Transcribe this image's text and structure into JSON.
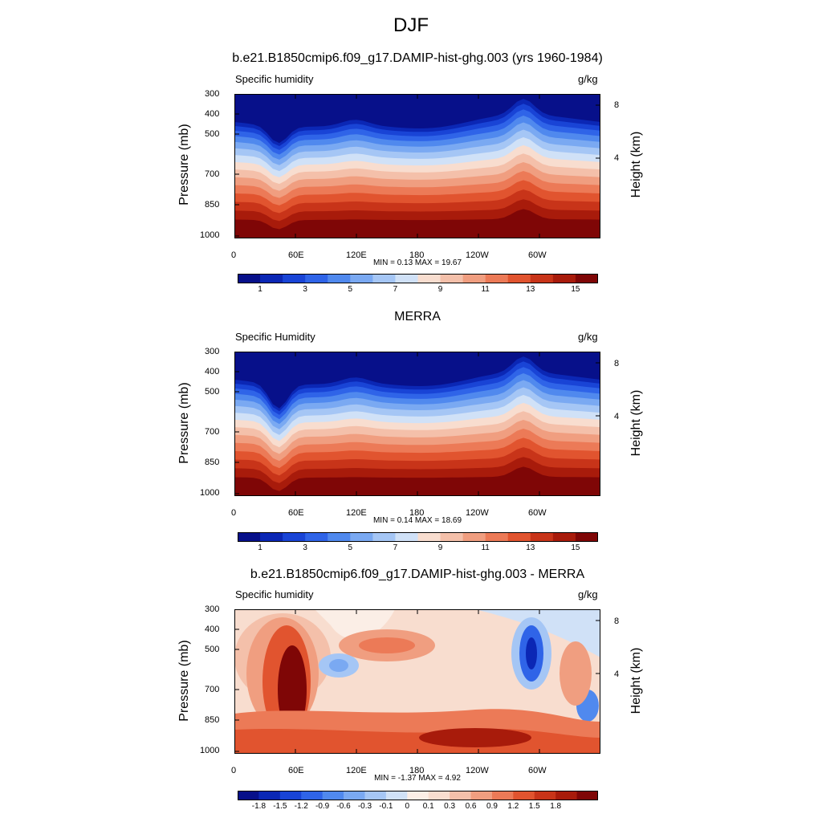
{
  "title": "DJF",
  "colors": {
    "humidity": [
      "#07108a",
      "#0b27b5",
      "#1944d6",
      "#2f64e8",
      "#5089ee",
      "#7aa9f2",
      "#a5c6f5",
      "#d0e1f7",
      "#f8ddcf",
      "#f4c0aa",
      "#f09e80",
      "#ec7a57",
      "#e1542f",
      "#c83419",
      "#a81b0b",
      "#7f0606"
    ],
    "difference": [
      "#07108a",
      "#0b27b5",
      "#1944d6",
      "#2f64e8",
      "#5089ee",
      "#7aa9f2",
      "#a5c6f5",
      "#d0e1f7",
      "#fbeee6",
      "#f8ddcf",
      "#f4c0aa",
      "#f09e80",
      "#ec7a57",
      "#e1542f",
      "#c83419",
      "#a81b0b",
      "#7f0606"
    ]
  },
  "chart_data": [
    {
      "type": "heatmap",
      "title": "b.e21.B1850cmip6.f09_g17.DAMIP-hist-ghg.003 (yrs 1960-1984)",
      "left_label": "Specific humidity",
      "right_label": "g/kg",
      "ylabel": "Pressure (mb)",
      "ylabel_right": "Height (km)",
      "yticks": [
        "300",
        "400",
        "500",
        "700",
        "850",
        "1000"
      ],
      "yticks_right": [
        "8",
        "4"
      ],
      "xticks": [
        "0",
        "60E",
        "120E",
        "180",
        "120W",
        "60W"
      ],
      "min_max": "MIN =   0.13  MAX =  19.67",
      "min": 0.13,
      "max": 19.67,
      "colorbar_labels": [
        "1",
        "3",
        "5",
        "7",
        "9",
        "11",
        "13",
        "15"
      ]
    },
    {
      "type": "heatmap",
      "title": "MERRA",
      "left_label": "Specific Humidity",
      "right_label": "g/kg",
      "ylabel": "Pressure (mb)",
      "ylabel_right": "Height (km)",
      "yticks": [
        "300",
        "400",
        "500",
        "700",
        "850",
        "1000"
      ],
      "yticks_right": [
        "8",
        "4"
      ],
      "xticks": [
        "0",
        "60E",
        "120E",
        "180",
        "120W",
        "60W"
      ],
      "min_max": "MIN =   0.14  MAX =  18.69",
      "min": 0.14,
      "max": 18.69,
      "colorbar_labels": [
        "1",
        "3",
        "5",
        "7",
        "9",
        "11",
        "13",
        "15"
      ]
    },
    {
      "type": "heatmap",
      "title": "b.e21.B1850cmip6.f09_g17.DAMIP-hist-ghg.003 - MERRA",
      "left_label": "Specific humidity",
      "right_label": "g/kg",
      "ylabel": "Pressure (mb)",
      "ylabel_right": "Height (km)",
      "yticks": [
        "300",
        "400",
        "500",
        "700",
        "850",
        "1000"
      ],
      "yticks_right": [
        "8",
        "4"
      ],
      "xticks": [
        "0",
        "60E",
        "120E",
        "180",
        "120W",
        "60W"
      ],
      "min_max": "MIN =  -1.37  MAX =   4.92",
      "min": -1.37,
      "max": 4.92,
      "colorbar_labels": [
        "-1.8",
        "-1.5",
        "-1.2",
        "-0.9",
        "-0.6",
        "-0.3",
        "-0.1",
        "0",
        "0.1",
        "0.3",
        "0.6",
        "0.9",
        "1.2",
        "1.5",
        "1.8"
      ]
    }
  ]
}
